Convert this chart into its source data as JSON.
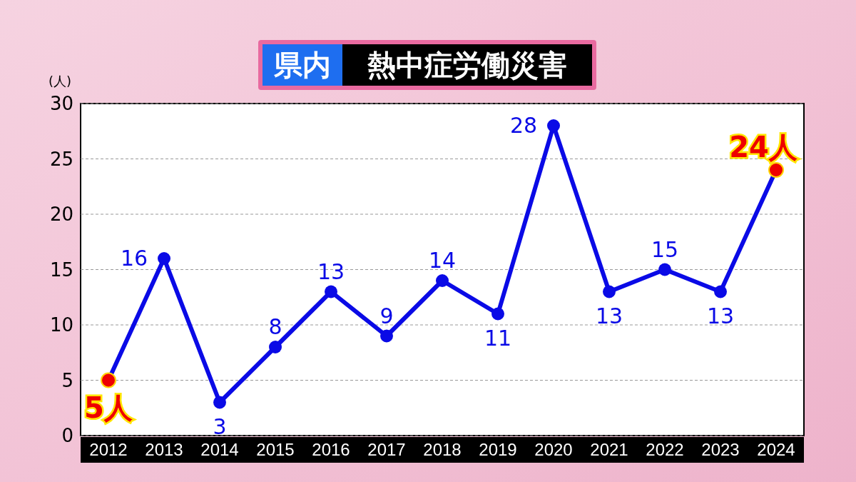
{
  "chart_data": {
    "type": "line",
    "title": "県内",
    "subtitle": "熱中症労働災害",
    "ylabel": "(人)",
    "categories": [
      "2012",
      "2013",
      "2014",
      "2015",
      "2016",
      "2017",
      "2018",
      "2019",
      "2020",
      "2021",
      "2022",
      "2023",
      "2024"
    ],
    "series": [
      {
        "color": "#0a0ae6",
        "colors": [
          "#ee0000",
          "#0a0ae6",
          "#0a0ae6",
          "#0a0ae6",
          "#0a0ae6",
          "#0a0ae6",
          "#0a0ae6",
          "#0a0ae6",
          "#0a0ae6",
          "#0a0ae6",
          "#0a0ae6",
          "#0a0ae6",
          "#ee0000"
        ],
        "values": [
          5,
          16,
          3,
          8,
          13,
          9,
          14,
          11,
          28,
          13,
          15,
          13,
          24
        ],
        "value_labels": [
          "5人",
          "16",
          "3",
          "8",
          "13",
          "9",
          "14",
          "11",
          "28",
          "13",
          "15",
          "13",
          "24人"
        ]
      }
    ],
    "ylim": [
      0,
      30
    ],
    "yticks": [
      0,
      5,
      10,
      15,
      20,
      25,
      30
    ],
    "grid": "y",
    "marker": "circle",
    "line_style": "solid"
  }
}
